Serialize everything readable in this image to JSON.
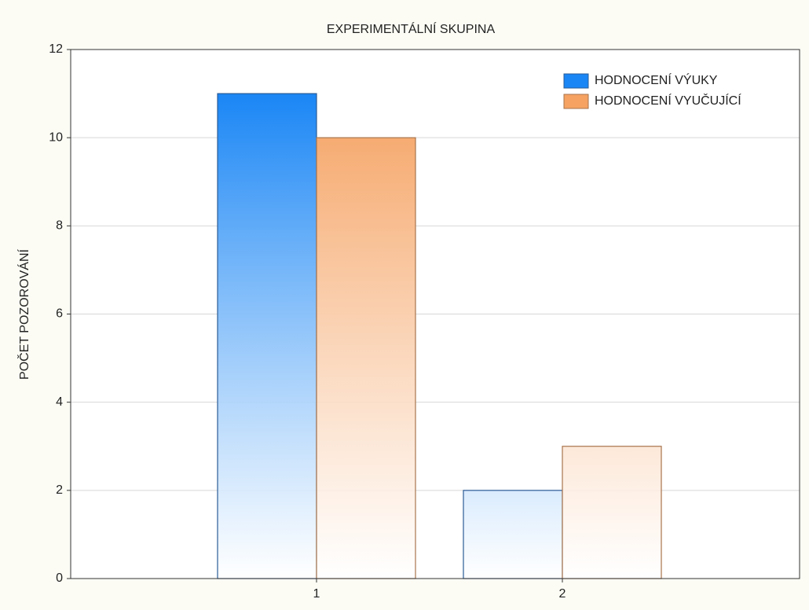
{
  "chart_data": {
    "type": "bar",
    "title": "EXPERIMENTÁLNÍ SKUPINA",
    "ylabel": "POČET POZOROVÁNÍ",
    "categories": [
      "1",
      "2"
    ],
    "series": [
      {
        "name": "HODNOCENÍ VÝUKY",
        "color": "#1a86f5",
        "values": [
          11,
          2
        ]
      },
      {
        "name": "HODNOCENÍ VYUČUJÍCÍ",
        "color": "#f5a262",
        "values": [
          10,
          3
        ]
      }
    ],
    "ylim": [
      0,
      12
    ],
    "yticks": [
      0,
      2,
      4,
      6,
      8,
      10,
      12
    ],
    "grid": true,
    "legend": "upper right"
  }
}
